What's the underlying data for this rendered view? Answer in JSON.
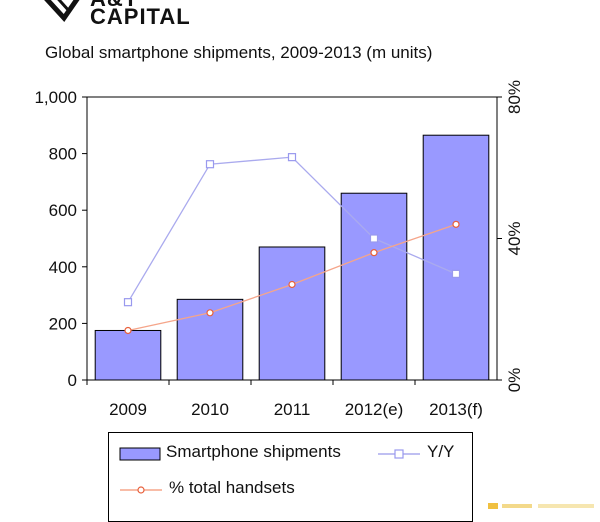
{
  "logo": {
    "line1": "A&T",
    "line2": "CAPITAL"
  },
  "colors": {
    "bar_fill": "#9999ff",
    "bar_stroke": "#000000",
    "yy_line": "#aaaaee",
    "handsets_line": "#f5a58a",
    "handsets_marker": "#e8603c"
  },
  "chart_data": {
    "type": "bar",
    "title": "Global smartphone shipments, 2009-2013 (m units)",
    "categories": [
      "2009",
      "2010",
      "2011",
      "2012(e)",
      "2013(f)"
    ],
    "series": [
      {
        "name": "Smartphone shipments",
        "type": "bar",
        "axis": "left",
        "values": [
          175,
          285,
          470,
          660,
          865
        ]
      },
      {
        "name": "Y/Y",
        "type": "line",
        "axis": "right",
        "marker": "square",
        "values": [
          0.22,
          0.61,
          0.63,
          0.4,
          0.3
        ]
      },
      {
        "name": "% total handsets",
        "type": "line",
        "axis": "right",
        "marker": "circle",
        "values": [
          0.14,
          0.19,
          0.27,
          0.36,
          0.44
        ]
      }
    ],
    "y_left": {
      "min": 0,
      "max": 1000,
      "ticks": [
        0,
        200,
        400,
        600,
        800,
        1000
      ],
      "tick_labels": [
        "0",
        "200",
        "400",
        "600",
        "800",
        "1,000"
      ]
    },
    "y_right": {
      "min": 0,
      "max": 0.8,
      "ticks": [
        0,
        0.4,
        0.8
      ],
      "tick_labels": [
        "0%",
        "40%",
        "80%"
      ]
    },
    "grid": false,
    "legend_placement": "bottom"
  }
}
